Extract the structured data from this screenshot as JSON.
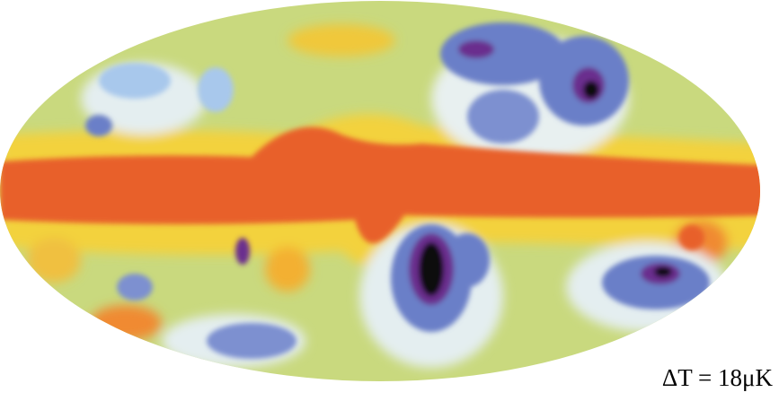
{
  "label": "ΔT = 18μK"
}
